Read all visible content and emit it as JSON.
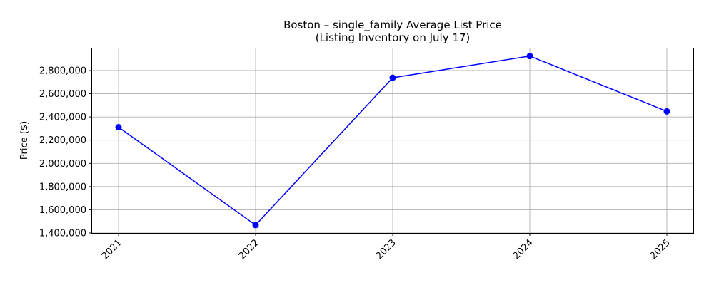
{
  "chart_data": {
    "type": "line",
    "title": "Boston – single_family Average List Price",
    "subtitle": "(Listing Inventory on July 17)",
    "xlabel": "",
    "ylabel": "Price ($)",
    "categories": [
      "2021",
      "2022",
      "2023",
      "2024",
      "2025"
    ],
    "series": [
      {
        "values": [
          2312000,
          1468000,
          2738000,
          2925000,
          2448000
        ]
      }
    ],
    "ylim": [
      1400000,
      2800000
    ],
    "yticks": [
      1400000,
      1600000,
      1800000,
      2000000,
      2200000,
      2400000,
      2600000,
      2800000
    ],
    "ytick_labels": [
      "1,400,000",
      "1,600,000",
      "1,800,000",
      "2,000,000",
      "2,200,000",
      "2,400,000",
      "2,600,000",
      "2,800,000"
    ],
    "grid": true,
    "line_color": "#0000ff",
    "marker": "circle"
  }
}
